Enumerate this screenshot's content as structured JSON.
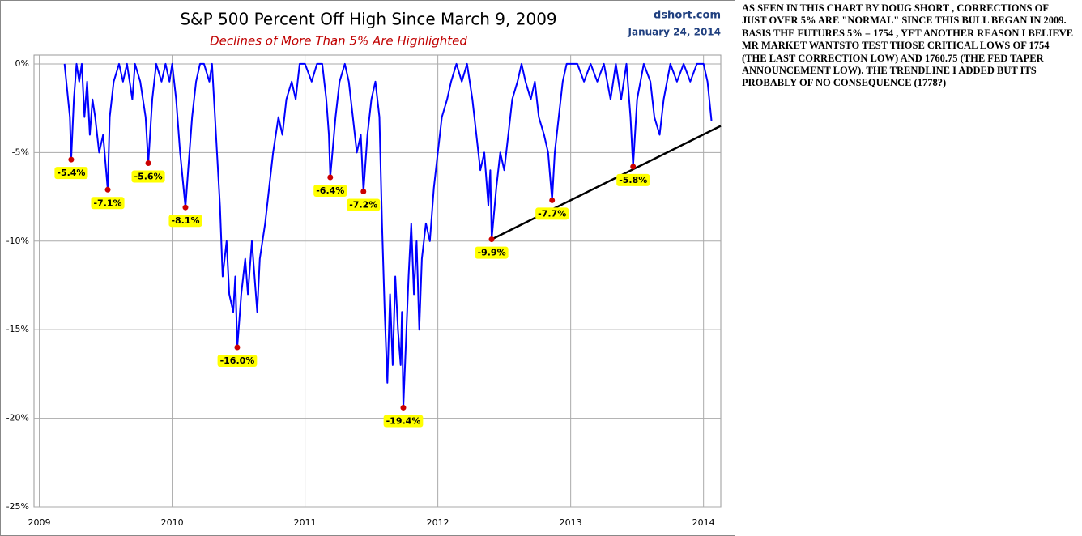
{
  "chart_data": {
    "type": "line",
    "title": "S&P 500 Percent Off High Since March 9, 2009",
    "subtitle": "Declines of More Than 5% Are Highlighted",
    "source": "dshort.com",
    "date": "January 24, 2014",
    "color": "#0000ff",
    "x": [
      2009.19,
      2009.21,
      2009.23,
      2009.24,
      2009.26,
      2009.28,
      2009.3,
      2009.32,
      2009.34,
      2009.36,
      2009.38,
      2009.4,
      2009.42,
      2009.45,
      2009.48,
      2009.515,
      2009.53,
      2009.56,
      2009.6,
      2009.63,
      2009.66,
      2009.7,
      2009.72,
      2009.76,
      2009.8,
      2009.82,
      2009.85,
      2009.88,
      2009.92,
      2009.95,
      2009.98,
      2010.0,
      2010.03,
      2010.06,
      2010.1,
      2010.12,
      2010.15,
      2010.18,
      2010.21,
      2010.24,
      2010.28,
      2010.3,
      2010.33,
      2010.36,
      2010.38,
      2010.41,
      2010.43,
      2010.46,
      2010.475,
      2010.49,
      2010.52,
      2010.55,
      2010.57,
      2010.6,
      2010.62,
      2010.64,
      2010.66,
      2010.7,
      2010.73,
      2010.76,
      2010.8,
      2010.83,
      2010.86,
      2010.9,
      2010.93,
      2010.96,
      2011.0,
      2011.05,
      2011.09,
      2011.13,
      2011.16,
      2011.18,
      2011.19,
      2011.23,
      2011.26,
      2011.3,
      2011.33,
      2011.36,
      2011.39,
      2011.42,
      2011.44,
      2011.47,
      2011.5,
      2011.53,
      2011.56,
      2011.58,
      2011.6,
      2011.62,
      2011.64,
      2011.66,
      2011.68,
      2011.7,
      2011.72,
      2011.73,
      2011.74,
      2011.78,
      2011.8,
      2011.82,
      2011.84,
      2011.86,
      2011.88,
      2011.91,
      2011.94,
      2011.97,
      2012.0,
      2012.03,
      2012.07,
      2012.1,
      2012.14,
      2012.18,
      2012.22,
      2012.26,
      2012.29,
      2012.32,
      2012.35,
      2012.38,
      2012.395,
      2012.405,
      2012.44,
      2012.47,
      2012.5,
      2012.53,
      2012.56,
      2012.6,
      2012.63,
      2012.66,
      2012.7,
      2012.73,
      2012.76,
      2012.8,
      2012.83,
      2012.86,
      2012.88,
      2012.91,
      2012.94,
      2012.97,
      2013.0,
      2013.05,
      2013.1,
      2013.15,
      2013.2,
      2013.25,
      2013.3,
      2013.34,
      2013.38,
      2013.42,
      2013.45,
      2013.47,
      2013.5,
      2013.55,
      2013.6,
      2013.63,
      2013.67,
      2013.7,
      2013.75,
      2013.8,
      2013.85,
      2013.9,
      2013.95,
      2014.0,
      2014.03,
      2014.06
    ],
    "values": [
      0,
      -1.5,
      -3,
      -5.4,
      -2,
      0,
      -1,
      0,
      -3,
      -1,
      -4,
      -2,
      -3,
      -5,
      -4,
      -7.1,
      -3,
      -1,
      0,
      -1,
      0,
      -2,
      0,
      -1,
      -3,
      -5.6,
      -2,
      0,
      -1,
      0,
      -1,
      0,
      -2,
      -5,
      -8.1,
      -6,
      -3,
      -1,
      0,
      0,
      -1,
      0,
      -4,
      -8,
      -12,
      -10,
      -13,
      -14,
      -12,
      -16.0,
      -13,
      -11,
      -13,
      -10,
      -12,
      -14,
      -11,
      -9,
      -7,
      -5,
      -3,
      -4,
      -2,
      -1,
      -2,
      0,
      0,
      -1,
      0,
      0,
      -2,
      -4,
      -6.4,
      -3,
      -1,
      0,
      -1,
      -3,
      -5,
      -4,
      -7.2,
      -4,
      -2,
      -1,
      -3,
      -9,
      -14,
      -18,
      -13,
      -17,
      -12,
      -15,
      -17,
      -14,
      -19.4,
      -12,
      -9,
      -13,
      -10,
      -15,
      -11,
      -9,
      -10,
      -7,
      -5,
      -3,
      -2,
      -1,
      0,
      -1,
      0,
      -2,
      -4,
      -6,
      -5,
      -8,
      -6,
      -9.9,
      -7,
      -5,
      -6,
      -4,
      -2,
      -1,
      0,
      -1,
      -2,
      -1,
      -3,
      -4,
      -5,
      -7.7,
      -5,
      -3,
      -1,
      0,
      0,
      0,
      -1,
      0,
      -1,
      0,
      -2,
      0,
      -2,
      0,
      -3,
      -5.8,
      -2,
      0,
      -1,
      -3,
      -4,
      -2,
      0,
      -1,
      0,
      -1,
      0,
      0,
      -1,
      -3.2
    ],
    "lows": {
      "color": "#cc0000",
      "label_color": "#ffff00",
      "x": [
        2009.24,
        2009.515,
        2009.82,
        2010.1,
        2010.49,
        2011.19,
        2011.44,
        2011.74,
        2012.405,
        2012.86,
        2013.47
      ],
      "values": [
        -5.4,
        -7.1,
        -5.6,
        -8.1,
        -16.0,
        -6.4,
        -7.2,
        -19.4,
        -9.9,
        -7.7,
        -5.8
      ],
      "value_labels": [
        "-5.4%",
        "-7.1%",
        "-5.6%",
        "-8.1%",
        "-16.0%",
        "-6.4%",
        "-7.2%",
        "-19.4%",
        "-9.9%",
        "-7.7%",
        "-5.8%"
      ]
    },
    "trendline": {
      "color": "#000000",
      "x": [
        2012.405,
        2014.13
      ],
      "values": [
        -9.9,
        -3.5
      ]
    },
    "xlim": [
      2008.96,
      2014.13
    ],
    "xticks": [
      2009,
      2010,
      2011,
      2012,
      2013,
      2014
    ],
    "ylim": [
      -25,
      0.5
    ],
    "yticks": [
      {
        "value": 0,
        "label": "0%"
      },
      {
        "value": -5,
        "label": "-5%"
      },
      {
        "value": -10,
        "label": "-10%"
      },
      {
        "value": -15,
        "label": "-15%"
      },
      {
        "value": -20,
        "label": "-20%"
      },
      {
        "value": -25,
        "label": "-25%"
      }
    ],
    "grid": true
  },
  "note": [
    "AS SEEN IN THIS CHART BY DOUG SHORT , CORRECTIONS OF",
    "JUST OVER 5% ARE \"NORMAL\" SINCE THIS BULL BEGAN IN 2009.",
    "BASIS THE FUTURES 5% = 1754 , YET ANOTHER REASON I BELIEVE",
    "MR MARKET WANTSTO TEST THOSE CRITICAL LOWS OF 1754",
    "(THE LAST CORRECTION LOW) AND 1760.75 (THE FED TAPER",
    "ANNOUNCEMENT LOW). THE TRENDLINE I ADDED BUT ITS",
    "PROBABLY OF NO CONSEQUENCE (1778?)"
  ]
}
